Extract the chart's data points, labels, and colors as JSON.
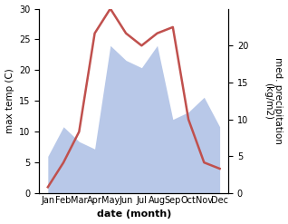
{
  "months": [
    "Jan",
    "Feb",
    "Mar",
    "Apr",
    "May",
    "Jun",
    "Jul",
    "Aug",
    "Sep",
    "Oct",
    "Nov",
    "Dec"
  ],
  "temperature": [
    1,
    5,
    10,
    26,
    30,
    26,
    24,
    26,
    27,
    12,
    5,
    4
  ],
  "precipitation": [
    5,
    9,
    7,
    6,
    20,
    18,
    17,
    20,
    10,
    11,
    13,
    9
  ],
  "temp_color": "#c0504d",
  "precip_fill_color": "#b8c8e8",
  "xlabel": "date (month)",
  "ylabel_left": "max temp (C)",
  "ylabel_right": "med. precipitation\n(kg/m2)",
  "ylim_left": [
    0,
    30
  ],
  "ylim_right": [
    0,
    25
  ],
  "yticks_left": [
    0,
    5,
    10,
    15,
    20,
    25,
    30
  ],
  "yticks_right": [
    0,
    5,
    10,
    15,
    20
  ],
  "background_color": "#ffffff",
  "temp_linewidth": 1.8,
  "xlabel_fontsize": 8,
  "ylabel_fontsize": 7.5,
  "tick_fontsize": 7
}
